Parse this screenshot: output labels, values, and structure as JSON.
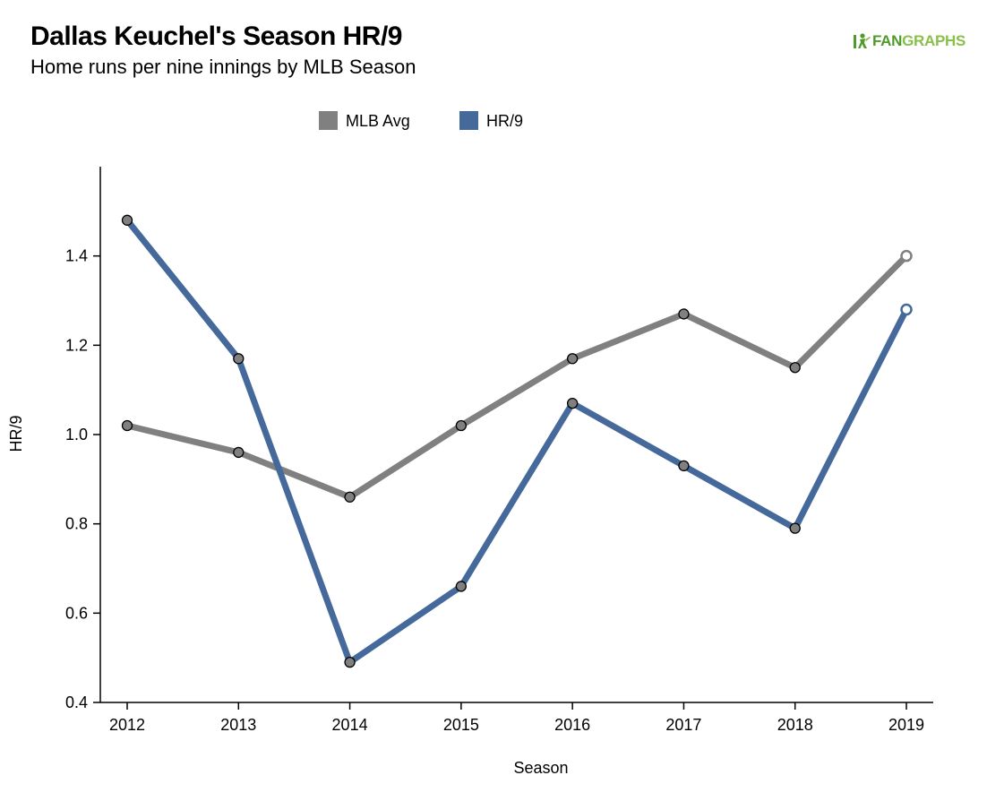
{
  "header": {
    "title": "Dallas Keuchel's Season HR/9",
    "subtitle": "Home runs per nine innings by MLB Season",
    "logo_part1": "FAN",
    "logo_part2": "GRAPHS"
  },
  "colors": {
    "mlb_avg": "#808080",
    "hr9": "#44699a",
    "marker_fill": "#808080",
    "marker_stroke": "#000000",
    "logo_green": "#4e9a2a",
    "logo_lightgreen": "#89c04a"
  },
  "chart_data": {
    "type": "line",
    "title": "Dallas Keuchel's Season HR/9",
    "subtitle": "Home runs per nine innings by MLB Season",
    "xlabel": "Season",
    "ylabel": "HR/9",
    "x": [
      "2012",
      "2013",
      "2014",
      "2015",
      "2016",
      "2017",
      "2018",
      "2019"
    ],
    "ylim": [
      0.4,
      1.6
    ],
    "yticks": [
      "0.4",
      "0.6",
      "0.8",
      "1.0",
      "1.2",
      "1.4"
    ],
    "grid": false,
    "legend_position": "top-center",
    "series": [
      {
        "name": "MLB Avg",
        "values": [
          1.02,
          0.96,
          0.86,
          1.02,
          1.17,
          1.27,
          1.15,
          1.4
        ],
        "last_point_hollow": true
      },
      {
        "name": "HR/9",
        "values": [
          1.48,
          1.17,
          0.49,
          0.66,
          1.07,
          0.93,
          0.79,
          1.28
        ],
        "last_point_hollow": true
      }
    ]
  }
}
